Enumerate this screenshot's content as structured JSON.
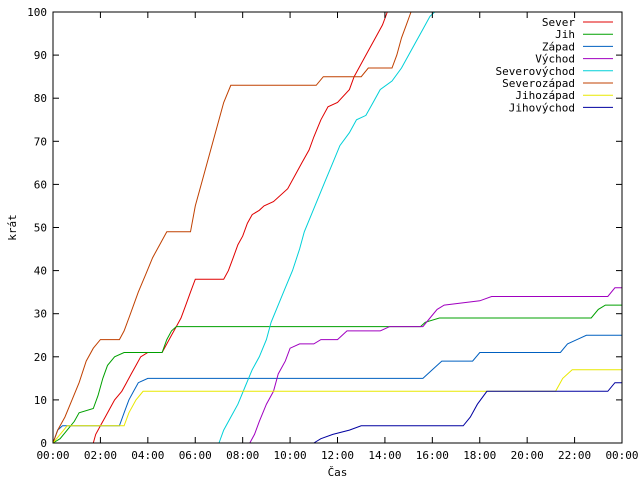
{
  "chart_data": {
    "type": "line",
    "title": "",
    "xlabel": "Čas",
    "ylabel": "krát",
    "xlim": [
      0,
      24
    ],
    "ylim": [
      0,
      100
    ],
    "x_unit": "hours",
    "x_ticks": [
      0,
      2,
      4,
      6,
      8,
      10,
      12,
      14,
      16,
      18,
      20,
      22,
      24
    ],
    "x_tick_labels": [
      "00:00",
      "02:00",
      "04:00",
      "06:00",
      "08:00",
      "10:00",
      "12:00",
      "14:00",
      "16:00",
      "18:00",
      "20:00",
      "22:00",
      "00:00"
    ],
    "y_ticks": [
      0,
      10,
      20,
      30,
      40,
      50,
      60,
      70,
      80,
      90,
      100
    ],
    "y_tick_labels": [
      "0",
      "10",
      "20",
      "30",
      "40",
      "50",
      "60",
      "70",
      "80",
      "90",
      "100"
    ],
    "grid": false,
    "legend_position": "top-right",
    "series": [
      {
        "name": "Sever",
        "color": "#e00000",
        "points": [
          [
            1.7,
            0
          ],
          [
            1.8,
            2
          ],
          [
            2.0,
            4
          ],
          [
            2.2,
            6
          ],
          [
            2.4,
            8
          ],
          [
            2.6,
            10
          ],
          [
            2.9,
            12
          ],
          [
            3.1,
            14
          ],
          [
            3.3,
            16
          ],
          [
            3.5,
            18
          ],
          [
            3.7,
            20
          ],
          [
            4.0,
            21
          ],
          [
            4.6,
            21
          ],
          [
            4.8,
            23
          ],
          [
            5.0,
            25
          ],
          [
            5.2,
            27
          ],
          [
            5.4,
            29
          ],
          [
            5.6,
            32
          ],
          [
            5.8,
            35
          ],
          [
            6.0,
            38
          ],
          [
            7.2,
            38
          ],
          [
            7.4,
            40
          ],
          [
            7.6,
            43
          ],
          [
            7.8,
            46
          ],
          [
            8.0,
            48
          ],
          [
            8.2,
            51
          ],
          [
            8.4,
            53
          ],
          [
            8.7,
            54
          ],
          [
            8.9,
            55
          ],
          [
            9.3,
            56
          ],
          [
            9.9,
            59
          ],
          [
            10.2,
            62
          ],
          [
            10.5,
            65
          ],
          [
            10.8,
            68
          ],
          [
            11.0,
            71
          ],
          [
            11.3,
            75
          ],
          [
            11.6,
            78
          ],
          [
            12.0,
            79
          ],
          [
            12.5,
            82
          ],
          [
            12.7,
            85
          ],
          [
            13.0,
            88
          ],
          [
            13.3,
            91
          ],
          [
            13.6,
            94
          ],
          [
            13.9,
            97
          ],
          [
            14.1,
            100
          ]
        ]
      },
      {
        "name": "Jih",
        "color": "#00a000",
        "points": [
          [
            0,
            0
          ],
          [
            0.3,
            1
          ],
          [
            0.6,
            3
          ],
          [
            0.9,
            5
          ],
          [
            1.1,
            7
          ],
          [
            1.7,
            8
          ],
          [
            1.9,
            11
          ],
          [
            2.1,
            15
          ],
          [
            2.3,
            18
          ],
          [
            2.6,
            20
          ],
          [
            3.0,
            21
          ],
          [
            4.6,
            21
          ],
          [
            4.8,
            24
          ],
          [
            5.0,
            26
          ],
          [
            5.2,
            27
          ],
          [
            15.5,
            27
          ],
          [
            15.7,
            28
          ],
          [
            16.3,
            29
          ],
          [
            22.7,
            29
          ],
          [
            23.0,
            31
          ],
          [
            23.3,
            32
          ],
          [
            24,
            32
          ]
        ]
      },
      {
        "name": "Západ",
        "color": "#0060c0",
        "points": [
          [
            0,
            0
          ],
          [
            0.2,
            3
          ],
          [
            0.4,
            4
          ],
          [
            2.8,
            4
          ],
          [
            3.0,
            7
          ],
          [
            3.2,
            10
          ],
          [
            3.4,
            12
          ],
          [
            3.6,
            14
          ],
          [
            4.0,
            15
          ],
          [
            15.6,
            15
          ],
          [
            16.0,
            17
          ],
          [
            16.4,
            19
          ],
          [
            17.7,
            19
          ],
          [
            18.0,
            21
          ],
          [
            21.4,
            21
          ],
          [
            21.7,
            23
          ],
          [
            22.1,
            24
          ],
          [
            22.5,
            25
          ],
          [
            24,
            25
          ]
        ]
      },
      {
        "name": "Východ",
        "color": "#a000c0",
        "points": [
          [
            8.3,
            0
          ],
          [
            8.5,
            2
          ],
          [
            8.7,
            5
          ],
          [
            9.0,
            9
          ],
          [
            9.3,
            12
          ],
          [
            9.5,
            16
          ],
          [
            9.8,
            19
          ],
          [
            10.0,
            22
          ],
          [
            10.4,
            23
          ],
          [
            11.0,
            23
          ],
          [
            11.3,
            24
          ],
          [
            12.0,
            24
          ],
          [
            12.4,
            26
          ],
          [
            13.0,
            26
          ],
          [
            13.8,
            26
          ],
          [
            14.2,
            27
          ],
          [
            15.6,
            27
          ],
          [
            15.9,
            29
          ],
          [
            16.2,
            31
          ],
          [
            16.5,
            32
          ],
          [
            18.0,
            33
          ],
          [
            18.5,
            34
          ],
          [
            23.4,
            34
          ],
          [
            23.7,
            36
          ],
          [
            24,
            36
          ]
        ]
      },
      {
        "name": "Severovýchod",
        "color": "#00d0d8",
        "points": [
          [
            7.0,
            0
          ],
          [
            7.2,
            3
          ],
          [
            7.5,
            6
          ],
          [
            7.8,
            9
          ],
          [
            8.1,
            13
          ],
          [
            8.4,
            17
          ],
          [
            8.7,
            20
          ],
          [
            9.0,
            24
          ],
          [
            9.2,
            28
          ],
          [
            9.5,
            32
          ],
          [
            9.8,
            36
          ],
          [
            10.1,
            40
          ],
          [
            10.4,
            45
          ],
          [
            10.6,
            49
          ],
          [
            10.9,
            53
          ],
          [
            11.2,
            57
          ],
          [
            11.5,
            61
          ],
          [
            11.8,
            65
          ],
          [
            12.1,
            69
          ],
          [
            12.5,
            72
          ],
          [
            12.8,
            75
          ],
          [
            13.2,
            76
          ],
          [
            13.5,
            79
          ],
          [
            13.8,
            82
          ],
          [
            14.3,
            84
          ],
          [
            14.7,
            87
          ],
          [
            15.0,
            90
          ],
          [
            15.3,
            93
          ],
          [
            15.6,
            96
          ],
          [
            15.9,
            99
          ],
          [
            16.1,
            100
          ]
        ]
      },
      {
        "name": "Severozápad",
        "color": "#c04000",
        "points": [
          [
            0,
            0
          ],
          [
            0.2,
            3
          ],
          [
            0.5,
            6
          ],
          [
            0.8,
            10
          ],
          [
            1.1,
            14
          ],
          [
            1.4,
            19
          ],
          [
            1.7,
            22
          ],
          [
            2.0,
            24
          ],
          [
            2.8,
            24
          ],
          [
            3.0,
            26
          ],
          [
            3.2,
            29
          ],
          [
            3.4,
            32
          ],
          [
            3.6,
            35
          ],
          [
            3.9,
            39
          ],
          [
            4.2,
            43
          ],
          [
            4.5,
            46
          ],
          [
            4.8,
            49
          ],
          [
            5.8,
            49
          ],
          [
            6.0,
            55
          ],
          [
            6.3,
            61
          ],
          [
            6.6,
            67
          ],
          [
            6.9,
            73
          ],
          [
            7.2,
            79
          ],
          [
            7.5,
            83
          ],
          [
            11.1,
            83
          ],
          [
            11.4,
            85
          ],
          [
            13.0,
            85
          ],
          [
            13.3,
            87
          ],
          [
            14.3,
            87
          ],
          [
            14.5,
            90
          ],
          [
            14.7,
            94
          ],
          [
            14.9,
            97
          ],
          [
            15.1,
            100
          ]
        ]
      },
      {
        "name": "Jihozápad",
        "color": "#e8e800",
        "points": [
          [
            0,
            0
          ],
          [
            0.3,
            2
          ],
          [
            0.6,
            4
          ],
          [
            3.0,
            4
          ],
          [
            3.2,
            7
          ],
          [
            3.5,
            10
          ],
          [
            3.8,
            12
          ],
          [
            18.0,
            12
          ],
          [
            21.2,
            12
          ],
          [
            21.5,
            15
          ],
          [
            21.9,
            17
          ],
          [
            24,
            17
          ]
        ]
      },
      {
        "name": "Jihovýchod",
        "color": "#0000a0",
        "points": [
          [
            11.0,
            0
          ],
          [
            11.3,
            1
          ],
          [
            11.8,
            2
          ],
          [
            12.5,
            3
          ],
          [
            13.0,
            4
          ],
          [
            17.3,
            4
          ],
          [
            17.6,
            6
          ],
          [
            17.9,
            9
          ],
          [
            18.3,
            12
          ],
          [
            23.4,
            12
          ],
          [
            23.7,
            14
          ],
          [
            24,
            14
          ]
        ]
      }
    ]
  }
}
